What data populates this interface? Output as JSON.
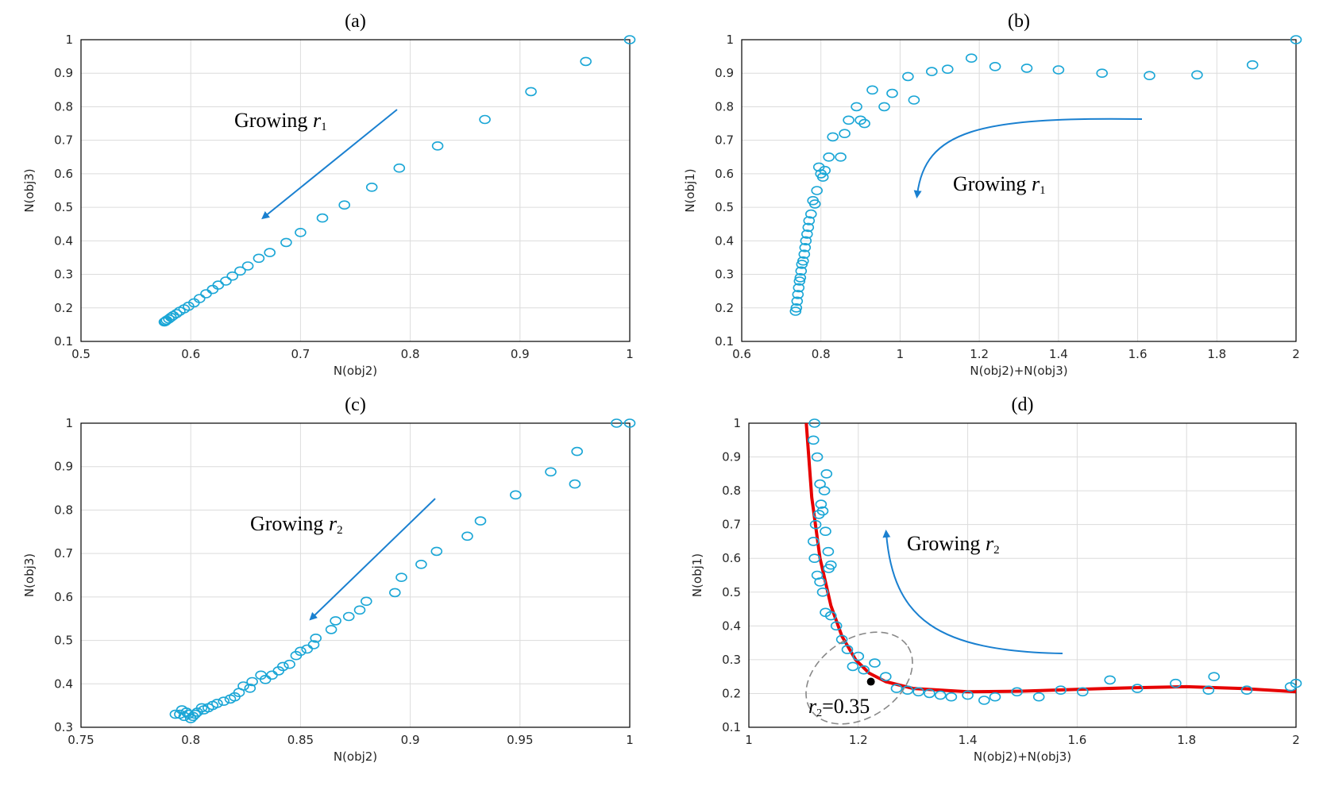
{
  "chart_data": [
    {
      "id": "a",
      "type": "scatter",
      "title": "(a)",
      "xlabel": "N(obj2)",
      "ylabel": "N(obj3)",
      "xlim": [
        0.5,
        1
      ],
      "ylim": [
        0.1,
        1
      ],
      "xticks": [
        "0.5",
        "0.6",
        "0.7",
        "0.8",
        "0.9",
        "1"
      ],
      "yticks": [
        "0.1",
        "0.2",
        "0.3",
        "0.4",
        "0.5",
        "0.6",
        "0.7",
        "0.8",
        "0.9",
        "1"
      ],
      "grid": true,
      "annotation": {
        "text": "Growing ",
        "var": "r",
        "sub": "1"
      },
      "x": [
        1.0,
        0.96,
        0.91,
        0.868,
        0.825,
        0.79,
        0.765,
        0.74,
        0.72,
        0.7,
        0.687,
        0.672,
        0.662,
        0.652,
        0.645,
        0.638,
        0.632,
        0.625,
        0.62,
        0.614,
        0.608,
        0.603,
        0.598,
        0.594,
        0.59,
        0.587,
        0.584,
        0.582,
        0.58,
        0.578,
        0.577,
        0.576
      ],
      "y": [
        1.0,
        0.935,
        0.845,
        0.762,
        0.683,
        0.617,
        0.56,
        0.507,
        0.468,
        0.425,
        0.395,
        0.365,
        0.348,
        0.325,
        0.31,
        0.295,
        0.28,
        0.268,
        0.255,
        0.242,
        0.228,
        0.215,
        0.205,
        0.197,
        0.19,
        0.183,
        0.177,
        0.172,
        0.167,
        0.163,
        0.16,
        0.158
      ],
      "color": "#1aa6d6"
    },
    {
      "id": "b",
      "type": "scatter",
      "title": "(b)",
      "xlabel": "N(obj2)+N(obj3)",
      "ylabel": "N(obj1)",
      "xlim": [
        0.6,
        2
      ],
      "ylim": [
        0.1,
        1
      ],
      "xticks": [
        "0.6",
        "0.8",
        "1",
        "1.2",
        "1.4",
        "1.6",
        "1.8",
        "2"
      ],
      "yticks": [
        "0.1",
        "0.2",
        "0.3",
        "0.4",
        "0.5",
        "0.6",
        "0.7",
        "0.8",
        "0.9",
        "1"
      ],
      "grid": true,
      "annotation": {
        "text": "Growing ",
        "var": "r",
        "sub": "1"
      },
      "x": [
        2.0,
        1.89,
        1.75,
        1.63,
        1.51,
        1.4,
        1.32,
        1.24,
        1.18,
        1.12,
        1.08,
        1.02,
        1.035,
        0.98,
        0.96,
        0.93,
        0.91,
        0.9,
        0.89,
        0.87,
        0.86,
        0.85,
        0.83,
        0.82,
        0.81,
        0.805,
        0.8,
        0.795,
        0.79,
        0.785,
        0.78,
        0.775,
        0.77,
        0.768,
        0.765,
        0.762,
        0.76,
        0.758,
        0.755,
        0.752,
        0.75,
        0.748,
        0.746,
        0.744,
        0.742,
        0.74,
        0.738,
        0.736
      ],
      "y": [
        1.0,
        0.925,
        0.895,
        0.893,
        0.9,
        0.91,
        0.915,
        0.92,
        0.945,
        0.912,
        0.905,
        0.89,
        0.82,
        0.84,
        0.8,
        0.85,
        0.75,
        0.76,
        0.8,
        0.76,
        0.72,
        0.65,
        0.71,
        0.65,
        0.61,
        0.59,
        0.6,
        0.62,
        0.55,
        0.51,
        0.52,
        0.48,
        0.46,
        0.44,
        0.42,
        0.4,
        0.38,
        0.36,
        0.34,
        0.33,
        0.31,
        0.29,
        0.28,
        0.26,
        0.24,
        0.22,
        0.2,
        0.19
      ],
      "color": "#1aa6d6"
    },
    {
      "id": "c",
      "type": "scatter",
      "title": "(c)",
      "xlabel": "N(obj2)",
      "ylabel": "N(obj3)",
      "xlim": [
        0.75,
        1
      ],
      "ylim": [
        0.3,
        1
      ],
      "xticks": [
        "0.75",
        "0.8",
        "0.85",
        "0.9",
        "0.95",
        "1"
      ],
      "yticks": [
        "0.3",
        "0.4",
        "0.5",
        "0.6",
        "0.7",
        "0.8",
        "0.9",
        "1"
      ],
      "grid": true,
      "annotation": {
        "text": "Growing ",
        "var": "r",
        "sub": "2"
      },
      "x": [
        1.0,
        0.994,
        0.976,
        0.975,
        0.964,
        0.948,
        0.932,
        0.926,
        0.912,
        0.905,
        0.896,
        0.893,
        0.88,
        0.877,
        0.872,
        0.866,
        0.864,
        0.857,
        0.856,
        0.853,
        0.85,
        0.848,
        0.845,
        0.842,
        0.84,
        0.837,
        0.834,
        0.832,
        0.828,
        0.827,
        0.824,
        0.822,
        0.82,
        0.818,
        0.815,
        0.812,
        0.81,
        0.808,
        0.806,
        0.805,
        0.803,
        0.802,
        0.801,
        0.8,
        0.799,
        0.798,
        0.797,
        0.796,
        0.795,
        0.793
      ],
      "y": [
        1.0,
        1.0,
        0.935,
        0.86,
        0.888,
        0.835,
        0.775,
        0.74,
        0.705,
        0.675,
        0.645,
        0.61,
        0.59,
        0.57,
        0.555,
        0.545,
        0.525,
        0.505,
        0.49,
        0.48,
        0.475,
        0.465,
        0.445,
        0.44,
        0.43,
        0.42,
        0.41,
        0.42,
        0.405,
        0.39,
        0.395,
        0.38,
        0.37,
        0.365,
        0.36,
        0.355,
        0.35,
        0.345,
        0.34,
        0.345,
        0.335,
        0.33,
        0.325,
        0.32,
        0.33,
        0.335,
        0.325,
        0.34,
        0.33,
        0.33
      ],
      "color": "#1aa6d6"
    },
    {
      "id": "d",
      "type": "scatter",
      "title": "(d)",
      "xlabel": "N(obj2)+N(obj3)",
      "ylabel": "N(obj1)",
      "xlim": [
        1,
        2
      ],
      "ylim": [
        0.1,
        1
      ],
      "xticks": [
        "1",
        "1.2",
        "1.4",
        "1.6",
        "1.8",
        "2"
      ],
      "yticks": [
        "0.1",
        "0.2",
        "0.3",
        "0.4",
        "0.5",
        "0.6",
        "0.7",
        "0.8",
        "0.9",
        "1"
      ],
      "grid": true,
      "annotation": {
        "text": "Growing ",
        "var": "r",
        "sub": "2"
      },
      "callout": {
        "var": "r",
        "sub": "2",
        "value": "=0.35",
        "x": 1.223,
        "y": 0.235
      },
      "x": [
        2.0,
        1.99,
        1.91,
        1.85,
        1.84,
        1.78,
        1.71,
        1.66,
        1.61,
        1.57,
        1.53,
        1.49,
        1.45,
        1.43,
        1.4,
        1.37,
        1.35,
        1.33,
        1.31,
        1.29,
        1.27,
        1.25,
        1.23,
        1.21,
        1.2,
        1.19,
        1.18,
        1.17,
        1.16,
        1.15,
        1.14,
        1.135,
        1.13,
        1.125,
        1.12,
        1.118,
        1.122,
        1.128,
        1.132,
        1.138,
        1.142,
        1.146,
        1.15,
        1.145,
        1.14,
        1.135,
        1.13,
        1.125,
        1.118,
        1.12
      ],
      "y": [
        0.23,
        0.22,
        0.21,
        0.25,
        0.21,
        0.23,
        0.215,
        0.24,
        0.205,
        0.21,
        0.19,
        0.205,
        0.19,
        0.18,
        0.195,
        0.19,
        0.195,
        0.2,
        0.205,
        0.21,
        0.215,
        0.25,
        0.29,
        0.27,
        0.31,
        0.28,
        0.33,
        0.36,
        0.4,
        0.43,
        0.44,
        0.5,
        0.53,
        0.55,
        0.6,
        0.65,
        0.7,
        0.73,
        0.76,
        0.8,
        0.85,
        0.57,
        0.58,
        0.62,
        0.68,
        0.74,
        0.82,
        0.9,
        0.95,
        1.0
      ],
      "color": "#1aa6d6",
      "fit_color": "#e60000"
    }
  ]
}
